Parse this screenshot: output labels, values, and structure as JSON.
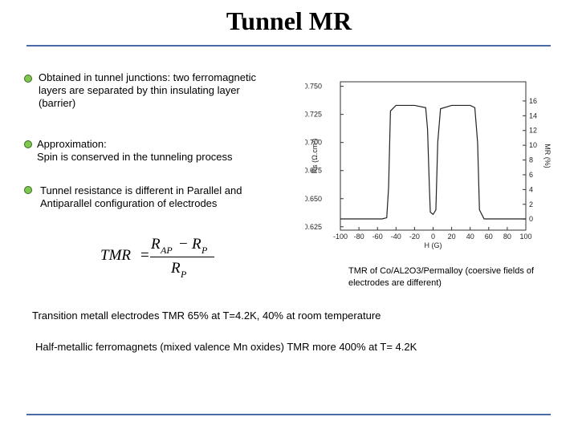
{
  "title": "Tunnel MR",
  "bullets": [
    "Obtained in tunnel junctions:  two ferromagnetic layers are separated by thin insulating layer (barrier)",
    "Approximation:\nSpin is conserved in the tunneling process",
    "Tunnel resistance is different in Parallel and Antiparallel configuration of electrodes"
  ],
  "formula": {
    "lhs": "TMR",
    "operators": [
      "=",
      "−"
    ],
    "numerator": [
      "R",
      "AP",
      "R",
      "P"
    ],
    "denominator": [
      "R",
      "P"
    ]
  },
  "figure": {
    "type": "line",
    "xlabel": "H (G)",
    "ylabel": "Rs (Ω.cm²)",
    "y2label": "MR (%)",
    "xlim": [
      -100,
      100
    ],
    "xticks": [
      -100,
      -80,
      -60,
      -40,
      -20,
      0,
      20,
      40,
      60,
      80,
      100
    ],
    "ylim": [
      0.622,
      0.754
    ],
    "yticks": [
      {
        "value": 0.625,
        "label": "0.625"
      },
      {
        "value": 0.65,
        "label": "0.650"
      },
      {
        "value": 0.675,
        "label": "0.675"
      },
      {
        "value": 0.7,
        "label": "0.700"
      },
      {
        "value": 0.725,
        "label": "0.725"
      },
      {
        "value": 0.75,
        "label": "0.750"
      }
    ],
    "y2lim": [
      -1.5,
      18.6
    ],
    "y2ticks": [
      0,
      2,
      4,
      6,
      8,
      10,
      12,
      14,
      16
    ],
    "x": [
      -100,
      -55,
      -50,
      -48,
      -46,
      -40,
      -20,
      -8,
      -6,
      -4,
      -3,
      0,
      3,
      5,
      8,
      20,
      40,
      45,
      48,
      50,
      55,
      100
    ],
    "series": [
      {
        "color": "#222222",
        "values": [
          0.632,
          0.632,
          0.633,
          0.66,
          0.728,
          0.733,
          0.733,
          0.731,
          0.712,
          0.66,
          0.638,
          0.636,
          0.64,
          0.7,
          0.73,
          0.733,
          0.733,
          0.731,
          0.7,
          0.64,
          0.632,
          0.632
        ]
      }
    ],
    "caption": "TMR of Co/AL2O3/Permalloy (coersive fields of electrodes are different)"
  },
  "notes": [
    "Transition metall electrodes TMR 65%  at T=4.2K, 40%  at room temperature",
    "Half-metallic ferromagnets (mixed valence Mn oxides) TMR more 400%  at T= 4.2K"
  ]
}
